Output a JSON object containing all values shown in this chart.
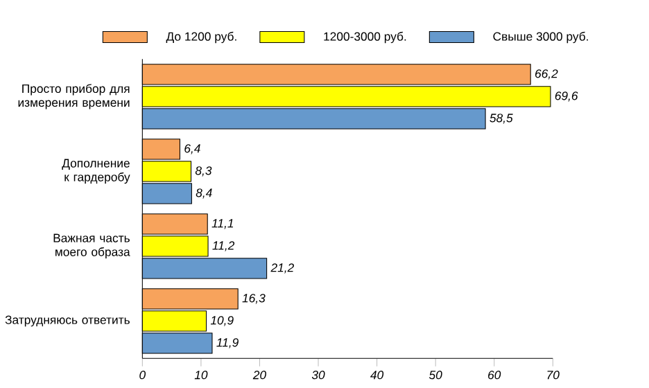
{
  "chart_data": {
    "type": "bar",
    "orientation": "horizontal",
    "categories": [
      "Просто прибор для измерения времени",
      "Дополнение к гардеробу",
      "Важная часть моего образа",
      "Затрудняюсь ответить"
    ],
    "series": [
      {
        "name": "До 1200 руб.",
        "color": "#f7a35c",
        "values": [
          66.2,
          6.4,
          11.1,
          16.3
        ],
        "value_labels": [
          "66,2",
          "6,4",
          "11,1",
          "16,3"
        ]
      },
      {
        "name": "1200-3000 руб.",
        "color": "#ffff00",
        "values": [
          69.6,
          8.3,
          11.2,
          10.9
        ],
        "value_labels": [
          "69,6",
          "8,3",
          "11,2",
          "10,9"
        ]
      },
      {
        "name": "Свыше 3000 руб.",
        "color": "#6699cc",
        "values": [
          58.5,
          8.4,
          21.2,
          11.9
        ],
        "value_labels": [
          "58,5",
          "8,4",
          "21,2",
          "11,9"
        ]
      }
    ],
    "xlim": [
      0,
      70
    ],
    "xticks": [
      0,
      10,
      20,
      30,
      40,
      50,
      60,
      70
    ],
    "legend": "top",
    "grid": false
  }
}
